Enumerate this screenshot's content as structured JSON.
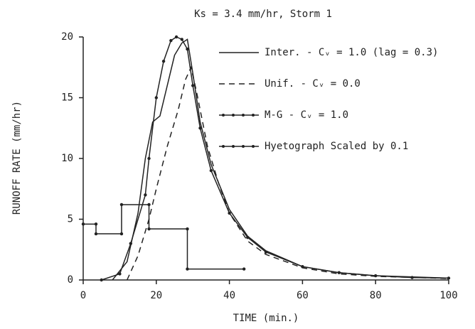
{
  "chart_data": {
    "type": "line",
    "title": "Ks = 3.4 mm/hr, Storm 1",
    "x_label": "TIME (min.)",
    "y_label": "RUNOFF RATE (mm/hr)",
    "xlim": [
      0,
      100
    ],
    "xticks": [
      0,
      20,
      40,
      60,
      80,
      100
    ],
    "ylim": [
      0,
      20
    ],
    "yticks": [
      0,
      5,
      10,
      15,
      20
    ],
    "series": [
      {
        "name": "Inter. - Cᵥ = 1.0 (lag = 0.3)",
        "color": "#222",
        "dash": "none",
        "markers": false,
        "x": [
          8,
          12,
          15,
          17,
          19,
          21,
          23,
          25,
          27,
          28.5,
          30,
          32,
          35,
          40,
          45,
          50,
          60,
          70,
          80,
          100
        ],
        "values": [
          0,
          1.5,
          5.5,
          10,
          13,
          13.5,
          16,
          18.5,
          19.5,
          19.8,
          17,
          13,
          9.5,
          5.8,
          3.6,
          2.4,
          1.1,
          0.6,
          0.35,
          0.15
        ]
      },
      {
        "name": "Unif. - Cᵥ = 0.0",
        "color": "#222",
        "dash": "8 6",
        "markers": false,
        "x": [
          12,
          15,
          18,
          20,
          23,
          26,
          28,
          29.5,
          31,
          34,
          37,
          40,
          45,
          50,
          60,
          70,
          80,
          100
        ],
        "values": [
          0,
          2,
          5,
          7.5,
          11,
          14,
          16.5,
          17.5,
          15.5,
          11,
          8,
          5.5,
          3.2,
          2.1,
          1,
          0.5,
          0.3,
          0.12
        ]
      },
      {
        "name": "M-G - Cᵥ = 1.0",
        "color": "#222",
        "dash": "none",
        "markers": true,
        "x": [
          5,
          10,
          13,
          17,
          18,
          20,
          22,
          24,
          25.5,
          27,
          28.5,
          30,
          32,
          35,
          40,
          45,
          50,
          60,
          70,
          80,
          90,
          100
        ],
        "values": [
          0,
          0.5,
          3,
          7,
          10,
          15,
          18,
          19.7,
          20,
          19.8,
          19,
          16,
          12.5,
          9,
          5.5,
          3.5,
          2.3,
          1.1,
          0.6,
          0.35,
          0.2,
          0.15
        ]
      },
      {
        "name": "Hyetograph Scaled by 0.1",
        "color": "#222",
        "dash": "none",
        "markers": true,
        "x": [
          0,
          3.5,
          3.5,
          10.5,
          10.5,
          18,
          18,
          28.5,
          28.5,
          44
        ],
        "values": [
          4.6,
          4.6,
          3.8,
          3.8,
          6.2,
          6.2,
          4.2,
          4.2,
          0.9,
          0.9
        ]
      }
    ]
  }
}
